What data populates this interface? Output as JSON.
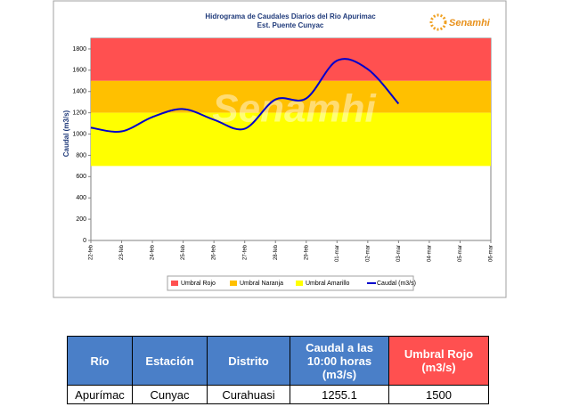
{
  "chart_data": {
    "type": "line",
    "title": "Hidrograma de Caudales Diarios del Rio Apurimac",
    "subtitle": "Est. Puente Cunyac",
    "y_label": "Caudal (m3/s)",
    "logo": "Senamhi",
    "watermark": "Senamhi",
    "categories": [
      "22-feb",
      "23-feb",
      "24-feb",
      "25-feb",
      "26-feb",
      "27-feb",
      "28-feb",
      "29-feb",
      "01-mar",
      "02-mar",
      "03-mar",
      "04-mar",
      "05-mar",
      "06-mar"
    ],
    "bands": [
      {
        "name": "Umbral Rojo",
        "color": "#ff5050",
        "from": 1500,
        "to": 1900
      },
      {
        "name": "Umbral Naranja",
        "color": "#ffc000",
        "from": 1200,
        "to": 1500
      },
      {
        "name": "Umbral Amarillo",
        "color": "#ffff00",
        "from": 700,
        "to": 1200
      }
    ],
    "series": [
      {
        "name": "Caudal (m3/s)",
        "color": "#0000cc",
        "values": [
          1060,
          1025,
          1160,
          1235,
          1135,
          1050,
          1325,
          1335,
          1690,
          1610,
          1285,
          null,
          null,
          null
        ]
      }
    ],
    "ylim": [
      0,
      1900
    ],
    "yticks": [
      0,
      200,
      400,
      600,
      800,
      1000,
      1200,
      1400,
      1600,
      1800
    ]
  },
  "table": {
    "header": [
      "Río",
      "Estación",
      "Distrito",
      "Caudal a las 10:00 horas (m3/s)",
      "Umbral Rojo (m3/s)"
    ],
    "rows": [
      [
        "Apurímac",
        "Cunyac",
        "Curahuasi",
        1255.1,
        1500
      ]
    ]
  }
}
